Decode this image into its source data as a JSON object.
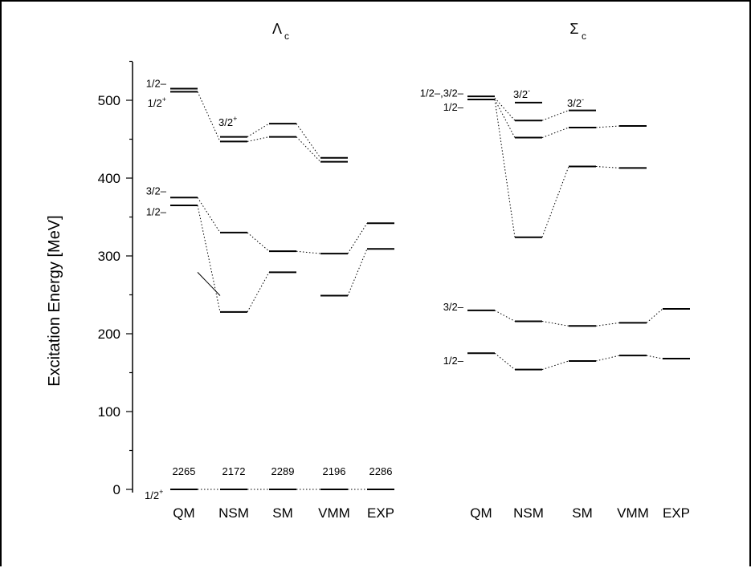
{
  "chart_data": {
    "type": "level-diagram",
    "ylabel": "Excitation Energy [MeV]",
    "ylim": [
      0,
      550
    ],
    "yticks": [
      "0",
      "100",
      "200",
      "300",
      "400",
      "500"
    ],
    "panels": [
      {
        "title": "Λ",
        "title_sub": "c",
        "models": [
          "QM",
          "NSM",
          "SM",
          "VMM",
          "EXP"
        ],
        "ground_masses": [
          "2265",
          "2172",
          "2289",
          "2196",
          "2286"
        ],
        "ground_label": "1/2",
        "ground_label_sup": "+",
        "levels": [
          {
            "model": "QM",
            "values": [
              0,
              365,
              375,
              511,
              515
            ]
          },
          {
            "model": "NSM",
            "values": [
              0,
              228,
              330,
              447,
              453
            ]
          },
          {
            "model": "SM",
            "values": [
              0,
              279,
              306,
              453,
              470
            ]
          },
          {
            "model": "VMM",
            "values": [
              0,
              249,
              303,
              421,
              426
            ]
          },
          {
            "model": "EXP",
            "values": [
              0,
              309,
              342
            ]
          }
        ],
        "connections": [
          {
            "values": [
              0,
              0,
              0,
              0,
              0
            ],
            "style": "dotted"
          },
          {
            "values": [
              375,
              330,
              306,
              303,
              342
            ],
            "style": "dotted"
          },
          {
            "values": [
              365,
              228,
              279
            ],
            "style": "dotted"
          },
          {
            "values": [
              279,
              249
            ],
            "style": "solid"
          },
          {
            "values": [
              249,
              309
            ],
            "style": "dotted",
            "start": 3
          },
          {
            "values": [
              511,
              447,
              453,
              421
            ],
            "style": "dotted"
          },
          {
            "values": [
              453,
              470,
              426
            ],
            "style": "dotted",
            "start": 1
          }
        ],
        "annotations": [
          {
            "text": "1/2–",
            "model": "QM",
            "value": 522,
            "side": "left"
          },
          {
            "text": "1/2",
            "sup": "+",
            "model": "QM",
            "value": 497,
            "side": "left"
          },
          {
            "text": "3/2–",
            "model": "QM",
            "value": 384,
            "side": "left"
          },
          {
            "text": "1/2–",
            "model": "QM",
            "value": 357,
            "side": "left"
          },
          {
            "text": "3/2",
            "sup": "+",
            "model": "NSM",
            "value": 472,
            "side": "top"
          }
        ]
      },
      {
        "title": "Σ",
        "title_sub": "c",
        "models": [
          "QM",
          "NSM",
          "SM",
          "VMM",
          "EXP"
        ],
        "levels": [
          {
            "model": "QM",
            "values": [
              175,
              230,
              501,
              505
            ]
          },
          {
            "model": "NSM",
            "values": [
              154,
              216,
              324,
              452,
              474,
              497
            ]
          },
          {
            "model": "SM",
            "values": [
              165,
              210,
              415,
              465,
              487
            ]
          },
          {
            "model": "VMM",
            "values": [
              172,
              214,
              413,
              467
            ]
          },
          {
            "model": "EXP",
            "values": [
              168,
              232
            ]
          }
        ],
        "connections": [
          {
            "values": [
              175,
              154,
              165,
              172,
              168
            ],
            "style": "dotted"
          },
          {
            "values": [
              230,
              216,
              210,
              214,
              232
            ],
            "style": "dotted"
          },
          {
            "values": [
              501,
              324,
              415,
              413
            ],
            "style": "dotted"
          },
          {
            "values": [
              501,
              452,
              465,
              467
            ],
            "style": "dotted"
          },
          {
            "values": [
              503,
              474,
              487
            ],
            "style": "dotted"
          }
        ],
        "annotations": [
          {
            "text": "1/2–,3/2–",
            "model": "QM",
            "value": 510,
            "side": "left"
          },
          {
            "text": "1/2–",
            "model": "QM",
            "value": 492,
            "side": "left"
          },
          {
            "text": "3/2",
            "sup": "-",
            "model": "NSM",
            "value": 508,
            "side": "top"
          },
          {
            "text": "3/2",
            "sup": "-",
            "model": "SM",
            "value": 497,
            "side": "top"
          },
          {
            "text": "3/2–",
            "model": "QM",
            "value": 235,
            "side": "left"
          },
          {
            "text": "1/2–",
            "model": "QM",
            "value": 166,
            "side": "left"
          }
        ]
      }
    ]
  }
}
